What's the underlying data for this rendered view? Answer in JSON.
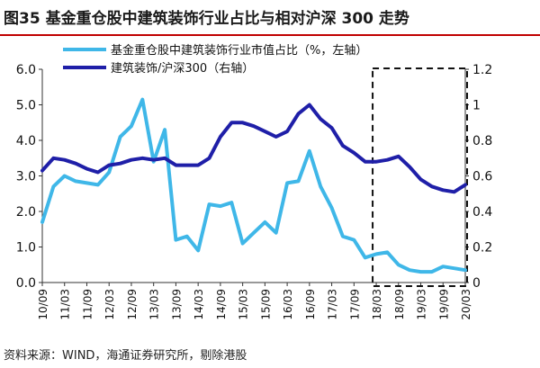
{
  "title": "图35 基金重仓股中建筑装饰行业占比与相对沪深 300 走势",
  "source": "资料来源：WIND，海通证券研究所，剔除港股",
  "chart_data": {
    "type": "line",
    "x_tick_labels": [
      "10/09",
      "11/03",
      "11/09",
      "12/03",
      "12/09",
      "13/03",
      "13/09",
      "14/03",
      "14/09",
      "15/03",
      "15/09",
      "16/03",
      "16/09",
      "17/03",
      "17/09",
      "18/03",
      "18/09",
      "19/03",
      "19/09",
      "20/03"
    ],
    "x_range": [
      0,
      19
    ],
    "left_axis": {
      "ylim": [
        0,
        6
      ],
      "ticks": [
        "0.0",
        "1.0",
        "2.0",
        "3.0",
        "4.0",
        "5.0",
        "6.0"
      ]
    },
    "right_axis": {
      "ylim": [
        0,
        1.2
      ],
      "ticks": [
        "0",
        "0.2",
        "0.4",
        "0.6",
        "0.8",
        "1",
        "1.2"
      ]
    },
    "series": [
      {
        "name": "基金重仓股中建筑装饰行业市值占比（%，左轴）",
        "axis": "left",
        "color": "#3fb7e8",
        "x": [
          0,
          0.5,
          1,
          1.5,
          2,
          2.5,
          3,
          3.5,
          4,
          4.5,
          5,
          5.5,
          6,
          6.5,
          7,
          7.5,
          8,
          8.5,
          9,
          9.5,
          10,
          10.5,
          11,
          11.5,
          12,
          12.5,
          13,
          13.5,
          14,
          14.5,
          15,
          15.5,
          16,
          16.5,
          17,
          17.5,
          18,
          18.5,
          19
        ],
        "values": [
          1.7,
          2.7,
          3.0,
          2.85,
          2.8,
          2.75,
          3.1,
          4.1,
          4.4,
          5.15,
          3.4,
          4.3,
          1.2,
          1.3,
          0.9,
          2.2,
          2.15,
          2.25,
          1.1,
          1.4,
          1.7,
          1.4,
          2.8,
          2.85,
          3.7,
          2.7,
          2.1,
          1.3,
          1.2,
          0.7,
          0.8,
          0.85,
          0.5,
          0.35,
          0.3,
          0.3,
          0.45,
          0.4,
          0.35
        ]
      },
      {
        "name": "建筑装饰/沪深300（右轴）",
        "axis": "right",
        "color": "#1f1fa8",
        "x": [
          0,
          0.5,
          1,
          1.5,
          2,
          2.5,
          3,
          3.5,
          4,
          4.5,
          5,
          5.5,
          6,
          6.5,
          7,
          7.5,
          8,
          8.5,
          9,
          9.5,
          10,
          10.5,
          11,
          11.5,
          12,
          12.5,
          13,
          13.5,
          14,
          14.5,
          15,
          15.5,
          16,
          16.5,
          17,
          17.5,
          18,
          18.5,
          19
        ],
        "values": [
          0.63,
          0.7,
          0.69,
          0.67,
          0.64,
          0.62,
          0.66,
          0.67,
          0.69,
          0.7,
          0.69,
          0.7,
          0.66,
          0.66,
          0.66,
          0.7,
          0.82,
          0.9,
          0.9,
          0.88,
          0.85,
          0.82,
          0.85,
          0.95,
          1.0,
          0.92,
          0.87,
          0.77,
          0.73,
          0.68,
          0.68,
          0.69,
          0.71,
          0.65,
          0.58,
          0.54,
          0.52,
          0.51,
          0.55
        ]
      }
    ],
    "legend": "top-center",
    "annotation": "dashed box highlighting 18/03 to 20/03"
  }
}
